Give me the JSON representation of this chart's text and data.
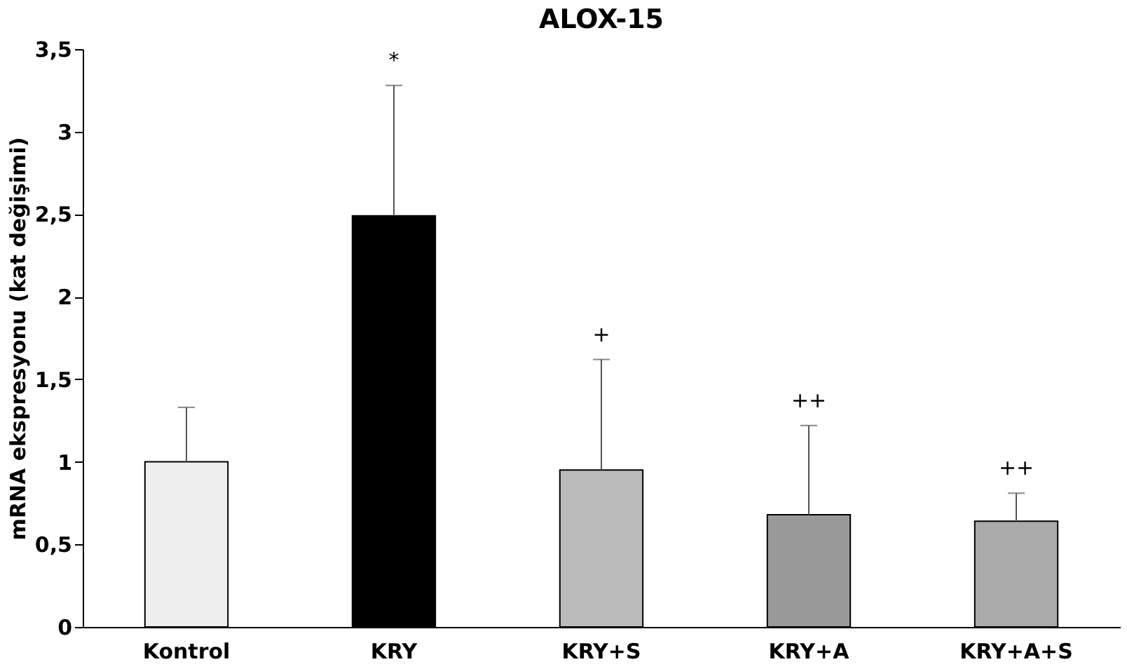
{
  "chart_data": {
    "type": "bar",
    "title": "ALOX-15",
    "ylabel": "mRNA ekspresyonu (kat değişimi)",
    "categories": [
      "Kontrol",
      "KRY",
      "KRY+S",
      "KRY+A",
      "KRY+A+S"
    ],
    "values": [
      1.0,
      2.49,
      0.95,
      0.68,
      0.64
    ],
    "errors": [
      [
        1.0,
        1.33
      ],
      [
        2.49,
        3.28
      ],
      [
        0.95,
        1.62
      ],
      [
        0.68,
        1.22
      ],
      [
        0.64,
        0.81
      ]
    ],
    "colors": [
      "#eeeeee",
      "#000000",
      "#bbbbbb",
      "#999999",
      "#aaaaaa"
    ],
    "ylim": [
      0,
      3.5
    ],
    "yticks": [
      0,
      {
        "value": 0.5,
        "label": "0,5"
      },
      1,
      {
        "value": 1.5,
        "label": "1,5"
      },
      2,
      {
        "value": 2.5,
        "label": "2,5"
      },
      3,
      {
        "value": 3.5,
        "label": "3,5"
      }
    ],
    "annotations": [
      "*",
      "+",
      "++",
      "++"
    ],
    "grid": false
  }
}
